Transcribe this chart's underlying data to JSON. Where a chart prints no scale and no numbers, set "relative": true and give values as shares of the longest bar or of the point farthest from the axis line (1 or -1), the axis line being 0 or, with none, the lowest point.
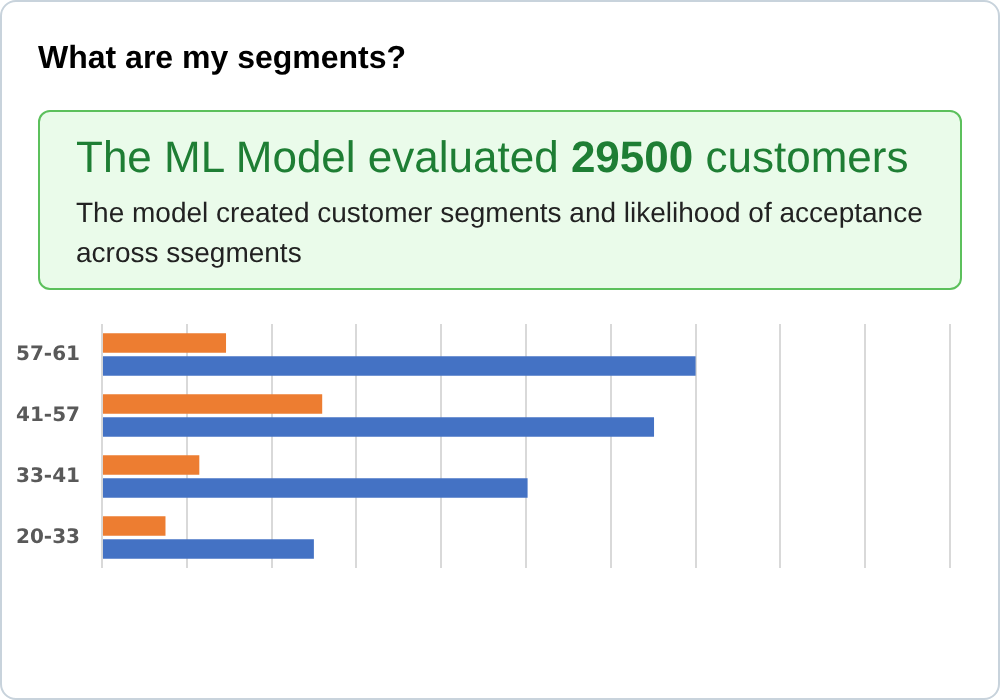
{
  "chart_data": {
    "type": "bar",
    "orientation": "horizontal",
    "relative": true,
    "title": "What are my segments?",
    "annotations": [
      "The ML Model evaluated 29500 customers",
      "The model created customer segments and likelihood of acceptance across ssegments"
    ],
    "categories": [
      "57-61",
      "41-57",
      "33-41",
      "20-33"
    ],
    "series": [
      {
        "color": "#ed7d31",
        "values": [
          0.209,
          0.371,
          0.164,
          0.107
        ]
      },
      {
        "color": "#4472c4",
        "values": [
          1,
          0.93,
          0.717,
          0.357
        ]
      }
    ],
    "grid": "x",
    "legend": false
  }
}
